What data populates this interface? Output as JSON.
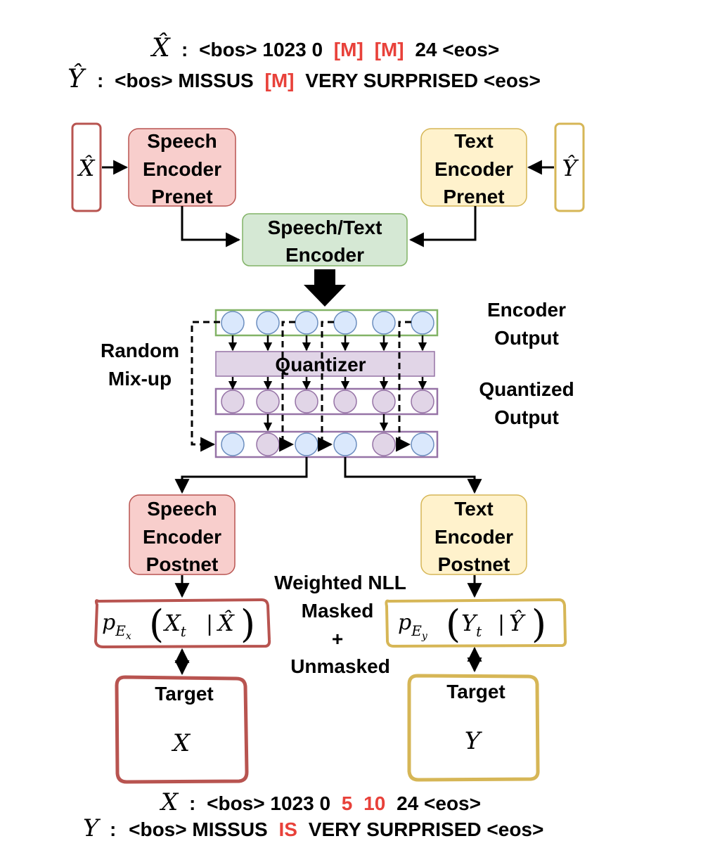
{
  "top": {
    "x_hat_symbol": "X̂",
    "x_hat_colon": ":",
    "x_hat_plain1": "<bos> 1023 0",
    "x_hat_mask1": "[M]",
    "x_hat_mask2": "[M]",
    "x_hat_plain2": "24 <eos>",
    "y_hat_symbol": "Ŷ",
    "y_hat_colon": ":",
    "y_hat_plain1": "<bos> MISSUS",
    "y_hat_mask": "[M]",
    "y_hat_plain2": "VERY SURPRISED <eos>"
  },
  "inputs": {
    "speech_input": "X̂",
    "text_input": "Ŷ"
  },
  "speech_prenet": [
    "Speech",
    "Encoder",
    "Prenet"
  ],
  "text_prenet": [
    "Text",
    "Encoder",
    "Prenet"
  ],
  "shared_encoder": [
    "Speech/Text",
    "Encoder"
  ],
  "labels": {
    "encoder_output": [
      "Encoder",
      "Output"
    ],
    "quantized_output": [
      "Quantized",
      "Output"
    ],
    "random_mixup": [
      "Random",
      "Mix-up"
    ],
    "quantizer": "Quantizer"
  },
  "speech_postnet": [
    "Speech",
    "Encoder",
    "Postnet"
  ],
  "text_postnet": [
    "Text",
    "Encoder",
    "Postnet"
  ],
  "loss": [
    "Weighted NLL",
    "Masked",
    "+",
    "Unmasked"
  ],
  "speech_prob": {
    "p": "p",
    "sub": "E",
    "subsub": "x",
    "open": "(",
    "var": "X",
    "var_sub": "t",
    "bar": "|",
    "cond": "X̂",
    "close": ")"
  },
  "text_prob": {
    "p": "p",
    "sub": "E",
    "subsub": "y",
    "open": "(",
    "var": "Y",
    "var_sub": "t",
    "bar": "|",
    "cond": "Ŷ",
    "close": ")"
  },
  "speech_target": {
    "label": "Target",
    "symbol": "X"
  },
  "text_target": {
    "label": "Target",
    "symbol": "Y"
  },
  "bottom": {
    "x_symbol": "X",
    "x_colon": ":",
    "x_plain1": "<bos> 1023 0",
    "x_red1": "5",
    "x_red2": "10",
    "x_plain2": "24 <eos>",
    "y_symbol": "Y",
    "y_colon": ":",
    "y_plain1": "<bos> MISSUS",
    "y_red": "IS",
    "y_plain2": "VERY SURPRISED <eos>"
  },
  "colors": {
    "speech_fill": "#f8cecc",
    "speech_stroke": "#b85450",
    "text_fill": "#fff2cc",
    "text_stroke": "#d6b656",
    "encoder_fill": "#d5e8d4",
    "encoder_stroke": "#82b366",
    "quant_fill": "#e1d5e7",
    "quant_stroke": "#9673a6",
    "blue_fill": "#dae8fc",
    "blue_stroke": "#6c8ebf",
    "red_text": "#e8413a"
  }
}
